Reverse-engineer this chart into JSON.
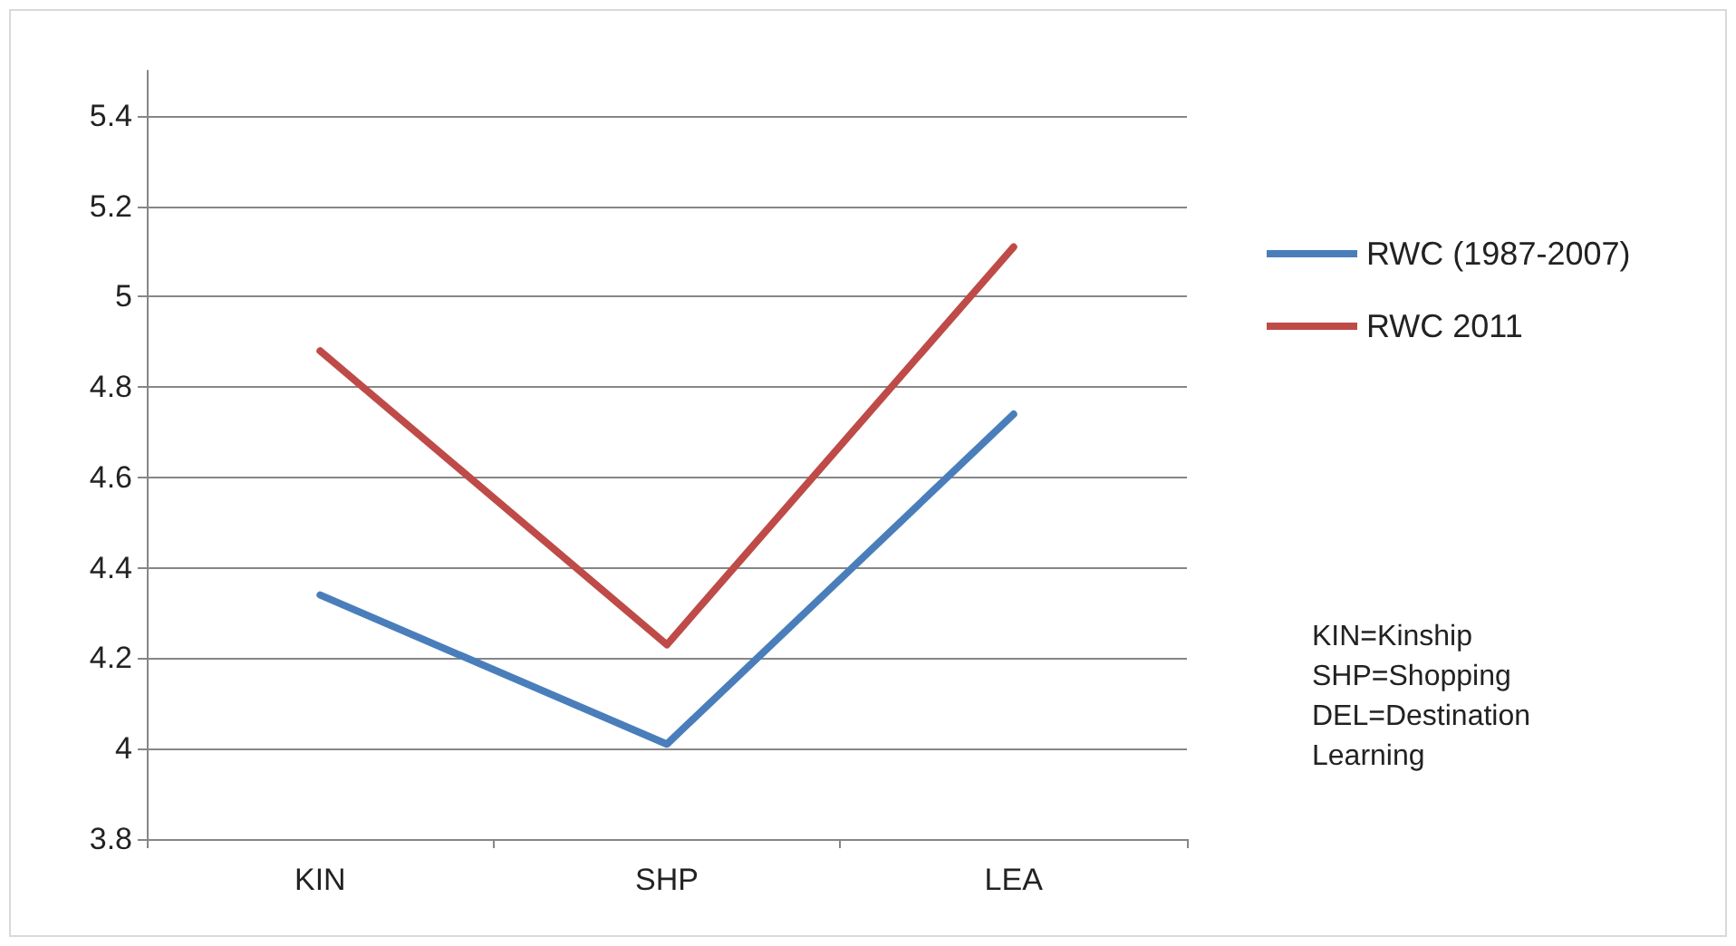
{
  "chart_data": {
    "type": "line",
    "categories": [
      "KIN",
      "SHP",
      "LEA"
    ],
    "series": [
      {
        "name": "RWC (1987-2007)",
        "color": "#4a7ebb",
        "values": [
          4.34,
          4.01,
          4.74
        ]
      },
      {
        "name": "RWC 2011",
        "color": "#be4b48",
        "values": [
          4.88,
          4.23,
          5.11
        ]
      }
    ],
    "ylim": [
      3.8,
      5.5
    ],
    "yticks": [
      3.8,
      4,
      4.2,
      4.4,
      4.6,
      4.8,
      5,
      5.2,
      5.4
    ],
    "grid": "y",
    "legend": "right",
    "marker": "none",
    "line_style": "solid",
    "annotations": [
      "KIN=Kinship",
      "SHP=Shopping",
      "DEL=Destination Learning"
    ]
  }
}
